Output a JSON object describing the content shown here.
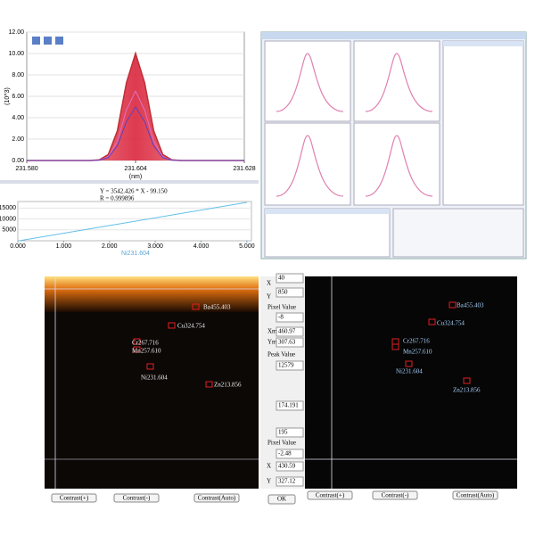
{
  "spectrum": {
    "type": "line",
    "y_label": "(10^3)",
    "x_label": "(nm)",
    "x": [
      231.58,
      231.582,
      231.584,
      231.586,
      231.588,
      231.59,
      231.592,
      231.594,
      231.596,
      231.598,
      231.6,
      231.602,
      231.604,
      231.606,
      231.608,
      231.61,
      231.612,
      231.614,
      231.616,
      231.618,
      231.62,
      231.622,
      231.624,
      231.626,
      231.628
    ],
    "series": [
      {
        "color": "#c0303a",
        "values": [
          0,
          0,
          0,
          0,
          0,
          0,
          0,
          0,
          0.06,
          0.56,
          2.78,
          7.26,
          10,
          7.26,
          2.78,
          0.56,
          0.06,
          0,
          0,
          0,
          0,
          0,
          0,
          0,
          0
        ]
      },
      {
        "color": "#e070c0",
        "values": [
          0,
          0,
          0,
          0,
          0,
          0,
          0,
          0,
          0.04,
          0.36,
          1.81,
          4.72,
          6.5,
          4.72,
          1.81,
          0.36,
          0.04,
          0,
          0,
          0,
          0,
          0,
          0,
          0,
          0
        ]
      },
      {
        "color": "#6040c0",
        "values": [
          0,
          0,
          0,
          0,
          0,
          0,
          0,
          0,
          0.03,
          0.28,
          1.39,
          3.63,
          5,
          3.63,
          1.39,
          0.28,
          0.03,
          0,
          0,
          0,
          0,
          0,
          0,
          0,
          0
        ]
      }
    ],
    "xlim": [
      231.58,
      231.628
    ],
    "xticks": [
      {
        "value": 231.58,
        "label": "231.580"
      },
      {
        "value": 231.604,
        "label": "231.604"
      },
      {
        "value": 231.628,
        "label": "231.628"
      }
    ],
    "ylim": [
      0,
      12
    ],
    "yticks": [
      {
        "value": 0,
        "label": "0.00"
      },
      {
        "value": 2,
        "label": "2.00"
      },
      {
        "value": 4,
        "label": "4.00"
      },
      {
        "value": 6,
        "label": "6.00"
      },
      {
        "value": 8,
        "label": "8.00"
      },
      {
        "value": 10,
        "label": "10.00"
      },
      {
        "value": 12,
        "label": "12.00"
      }
    ]
  },
  "calibration": {
    "type": "line",
    "equation": "Y = 3542.426 * X - 99.150",
    "r_value": "R = 0.999896",
    "x_label": "Ni231.604",
    "x": [
      0,
      5
    ],
    "values": [
      -99.15,
      17613
    ],
    "xlim": [
      0,
      5.1
    ],
    "xticks": [
      {
        "value": 0,
        "label": "0.000"
      },
      {
        "value": 1,
        "label": "1.000"
      },
      {
        "value": 2,
        "label": "2.000"
      },
      {
        "value": 3,
        "label": "3.000"
      },
      {
        "value": 4,
        "label": "4.000"
      },
      {
        "value": 5,
        "label": "5.000"
      }
    ],
    "ylim": [
      0,
      18000
    ],
    "yticks": [
      5000,
      10000,
      15000
    ]
  },
  "left_image": {
    "labels": [
      "Ba455.403",
      "Cu324.754",
      "Cr267.716",
      "Mn257.610",
      "Ni231.604",
      "Zn213.856"
    ],
    "buttons": [
      "Contrast(+)",
      "Contrast(-)",
      "Contrast(Auto)"
    ]
  },
  "right_image": {
    "labels": [
      "Ba455.403",
      "Cu324.754",
      "Cr267.716",
      "Mn257.610",
      "Ni231.604",
      "Zn213.856"
    ],
    "buttons": [
      "Contrast(+)",
      "Contrast(-)",
      "Contrast(Auto)"
    ]
  },
  "controls": {
    "items": [
      "X",
      "40",
      "Y",
      "850",
      "Pixel Value",
      "-8",
      "Xmax",
      "460.97",
      "Ymax",
      "307.63",
      "Peak Value",
      "12579",
      "174.191",
      "195",
      "Pixel Value",
      "-2.48",
      "X",
      "430.59",
      "Y",
      "327.12"
    ],
    "ok": "OK"
  }
}
